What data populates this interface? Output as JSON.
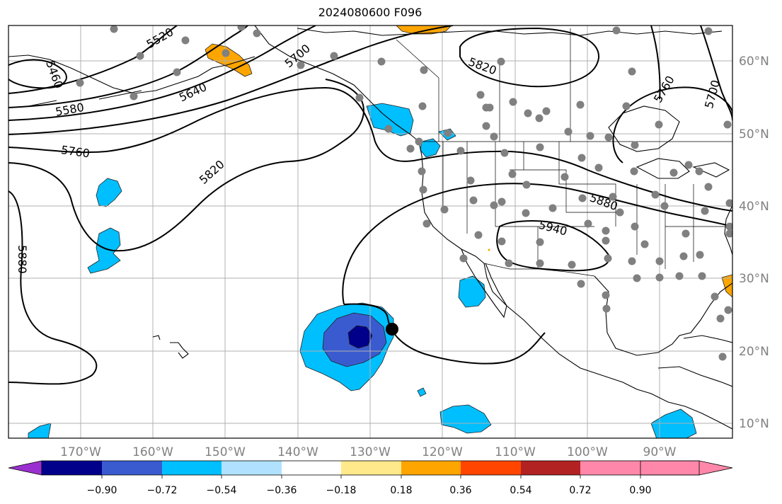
{
  "title": "2024080600 F096",
  "lon_labels": [
    "170°W",
    "160°W",
    "150°W",
    "140°W",
    "130°W",
    "120°W",
    "110°W",
    "100°W",
    "90°W"
  ],
  "lat_labels": [
    "10°N",
    "20°N",
    "30°N",
    "40°N",
    "50°N",
    "60°N"
  ],
  "colorbar": {
    "ticks": [
      "−0.90",
      "−0.72",
      "−0.54",
      "−0.36",
      "−0.18",
      "0.18",
      "0.36",
      "0.54",
      "0.72",
      "0.90"
    ],
    "colors": [
      "#9b30d0",
      "#00008b",
      "#3a5bcf",
      "#00bfff",
      "#b0e2ff",
      "#ffffff",
      "#ffe98a",
      "#ffa500",
      "#ff4500",
      "#b22222",
      "#ff88aa"
    ]
  },
  "contours": {
    "labels": [
      "5460",
      "5520",
      "5580",
      "5640",
      "5700",
      "5700",
      "5760",
      "5760",
      "5820",
      "5820",
      "5880",
      "5880",
      "5940"
    ]
  },
  "colors": {
    "land": "#000000",
    "grid": "#b0b0b0",
    "contour": "#000000",
    "station": "#808080",
    "cyclone_center": "#000000"
  }
}
